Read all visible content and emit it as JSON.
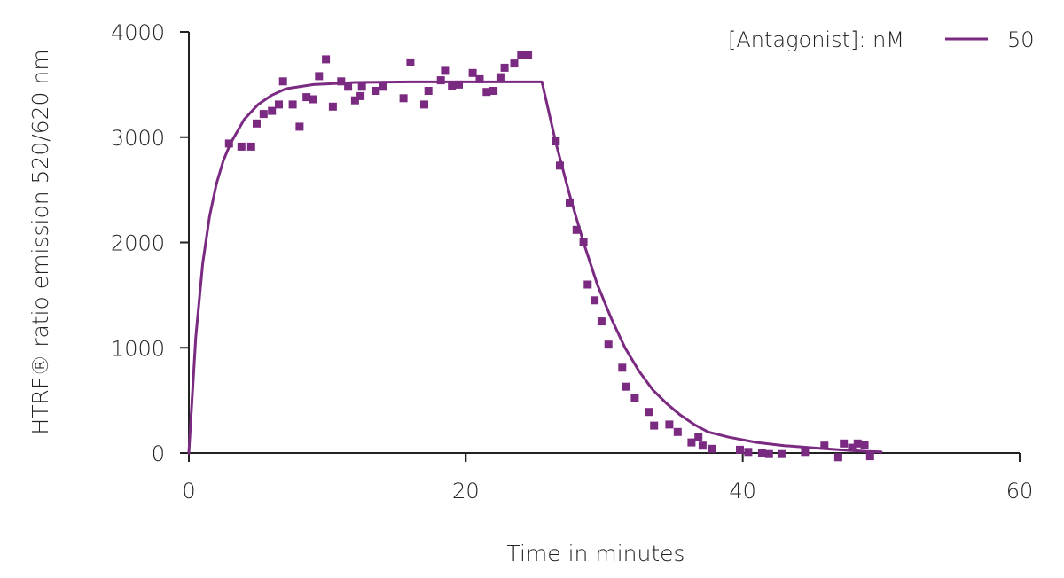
{
  "chart_data": {
    "type": "scatter",
    "xlabel": "Time in minutes",
    "ylabel": "HTRF® ratio emission 520/620 nm",
    "xlim": [
      0,
      60
    ],
    "ylim": [
      0,
      4000
    ],
    "x_ticks": [
      0,
      20,
      40,
      60
    ],
    "y_ticks": [
      0,
      1000,
      2000,
      3000,
      4000
    ],
    "x_tick_labels": [
      "0",
      "20",
      "40",
      "60"
    ],
    "y_tick_labels": [
      "0",
      "1000",
      "2000",
      "3000",
      "4000"
    ],
    "legend": {
      "title": "[Antagonist]: nM",
      "placement": "top-right",
      "entries": [
        {
          "label": "50",
          "marker": "line"
        }
      ]
    },
    "grid": false,
    "color": "#7b2a82",
    "series": [
      {
        "name": "50",
        "kind": "points",
        "x": [
          2.9,
          3.8,
          4.5,
          4.9,
          5.4,
          6.0,
          6.5,
          6.8,
          7.5,
          8.0,
          8.5,
          9.0,
          9.4,
          9.9,
          10.4,
          11.0,
          11.5,
          12.0,
          12.4,
          12.5,
          13.5,
          14.0,
          15.5,
          16.0,
          17.0,
          17.3,
          18.2,
          18.5,
          19.0,
          19.5,
          20.5,
          21.0,
          21.5,
          22.0,
          22.5,
          22.8,
          23.5,
          24.0,
          24.5,
          26.5,
          26.8,
          27.5,
          28.0,
          28.5,
          28.8,
          29.3,
          29.8,
          30.3,
          31.3,
          31.6,
          32.2,
          33.2,
          33.6,
          34.7,
          35.3,
          36.3,
          36.8,
          37.1,
          37.8,
          39.8,
          40.4,
          41.4,
          41.9,
          42.8,
          44.5,
          45.9,
          46.9,
          47.3,
          47.9,
          48.3,
          48.8,
          49.2
        ],
        "y": [
          2940,
          2910,
          2910,
          3130,
          3220,
          3250,
          3310,
          3530,
          3310,
          3100,
          3380,
          3360,
          3580,
          3740,
          3290,
          3530,
          3480,
          3350,
          3390,
          3480,
          3440,
          3480,
          3370,
          3710,
          3310,
          3440,
          3540,
          3630,
          3490,
          3500,
          3610,
          3550,
          3430,
          3440,
          3570,
          3660,
          3700,
          3780,
          3780,
          2960,
          2730,
          2380,
          2120,
          2000,
          1600,
          1450,
          1250,
          1030,
          810,
          630,
          520,
          390,
          260,
          270,
          200,
          100,
          150,
          70,
          40,
          30,
          10,
          0,
          -10,
          -10,
          10,
          70,
          -40,
          90,
          50,
          90,
          80,
          -30
        ]
      },
      {
        "name": "50",
        "kind": "fit",
        "x": [
          0,
          0.5,
          1,
          1.5,
          2,
          2.5,
          3,
          4,
          5,
          6,
          7,
          9,
          12,
          16,
          20,
          25.5,
          26.5,
          27.5,
          28.5,
          29.5,
          30.5,
          31.5,
          32.5,
          33.5,
          34.5,
          35.5,
          36.5,
          37.5,
          39,
          41,
          43,
          45,
          47,
          49,
          50
        ],
        "y": [
          0,
          1100,
          1800,
          2250,
          2560,
          2780,
          2940,
          3170,
          3310,
          3400,
          3460,
          3500,
          3520,
          3525,
          3525,
          3525,
          2950,
          2450,
          2000,
          1600,
          1280,
          1000,
          780,
          600,
          470,
          360,
          270,
          200,
          150,
          100,
          70,
          50,
          30,
          15,
          10
        ]
      }
    ]
  }
}
